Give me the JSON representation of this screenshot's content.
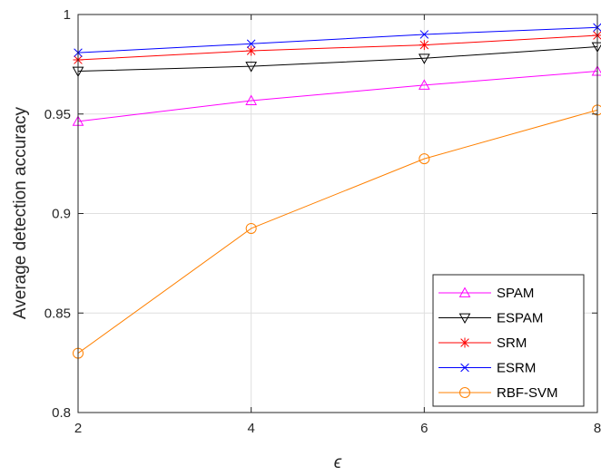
{
  "chart_data": {
    "type": "line",
    "title": "",
    "xlabel": "ϵ",
    "ylabel": "Average detection accuracy",
    "xlim": [
      2,
      8
    ],
    "ylim": [
      0.8,
      1.0
    ],
    "x": [
      2,
      4,
      6,
      8
    ],
    "x_ticks": [
      "2",
      "4",
      "6",
      "8"
    ],
    "y_ticks": [
      "0.8",
      "0.85",
      "0.9",
      "0.95",
      "1"
    ],
    "y_tick_values": [
      0.8,
      0.85,
      0.9,
      0.95,
      1.0
    ],
    "grid": true,
    "legend_position": "bottom-right",
    "series": [
      {
        "name": "SPAM",
        "color": "#ff00ff",
        "marker": "triangle-up",
        "values": [
          0.9463,
          0.9567,
          0.9645,
          0.9715
        ]
      },
      {
        "name": "ESPAM",
        "color": "#000000",
        "marker": "triangle-down",
        "values": [
          0.9715,
          0.974,
          0.978,
          0.9838
        ]
      },
      {
        "name": "SRM",
        "color": "#ff0000",
        "marker": "asterisk",
        "values": [
          0.9772,
          0.9818,
          0.9847,
          0.9895
        ]
      },
      {
        "name": "ESRM",
        "color": "#0000ff",
        "marker": "x",
        "values": [
          0.9808,
          0.9853,
          0.99,
          0.9935
        ]
      },
      {
        "name": "RBF-SVM",
        "color": "#ff8000",
        "marker": "circle",
        "values": [
          0.8298,
          0.8925,
          0.9275,
          0.952
        ]
      }
    ]
  }
}
